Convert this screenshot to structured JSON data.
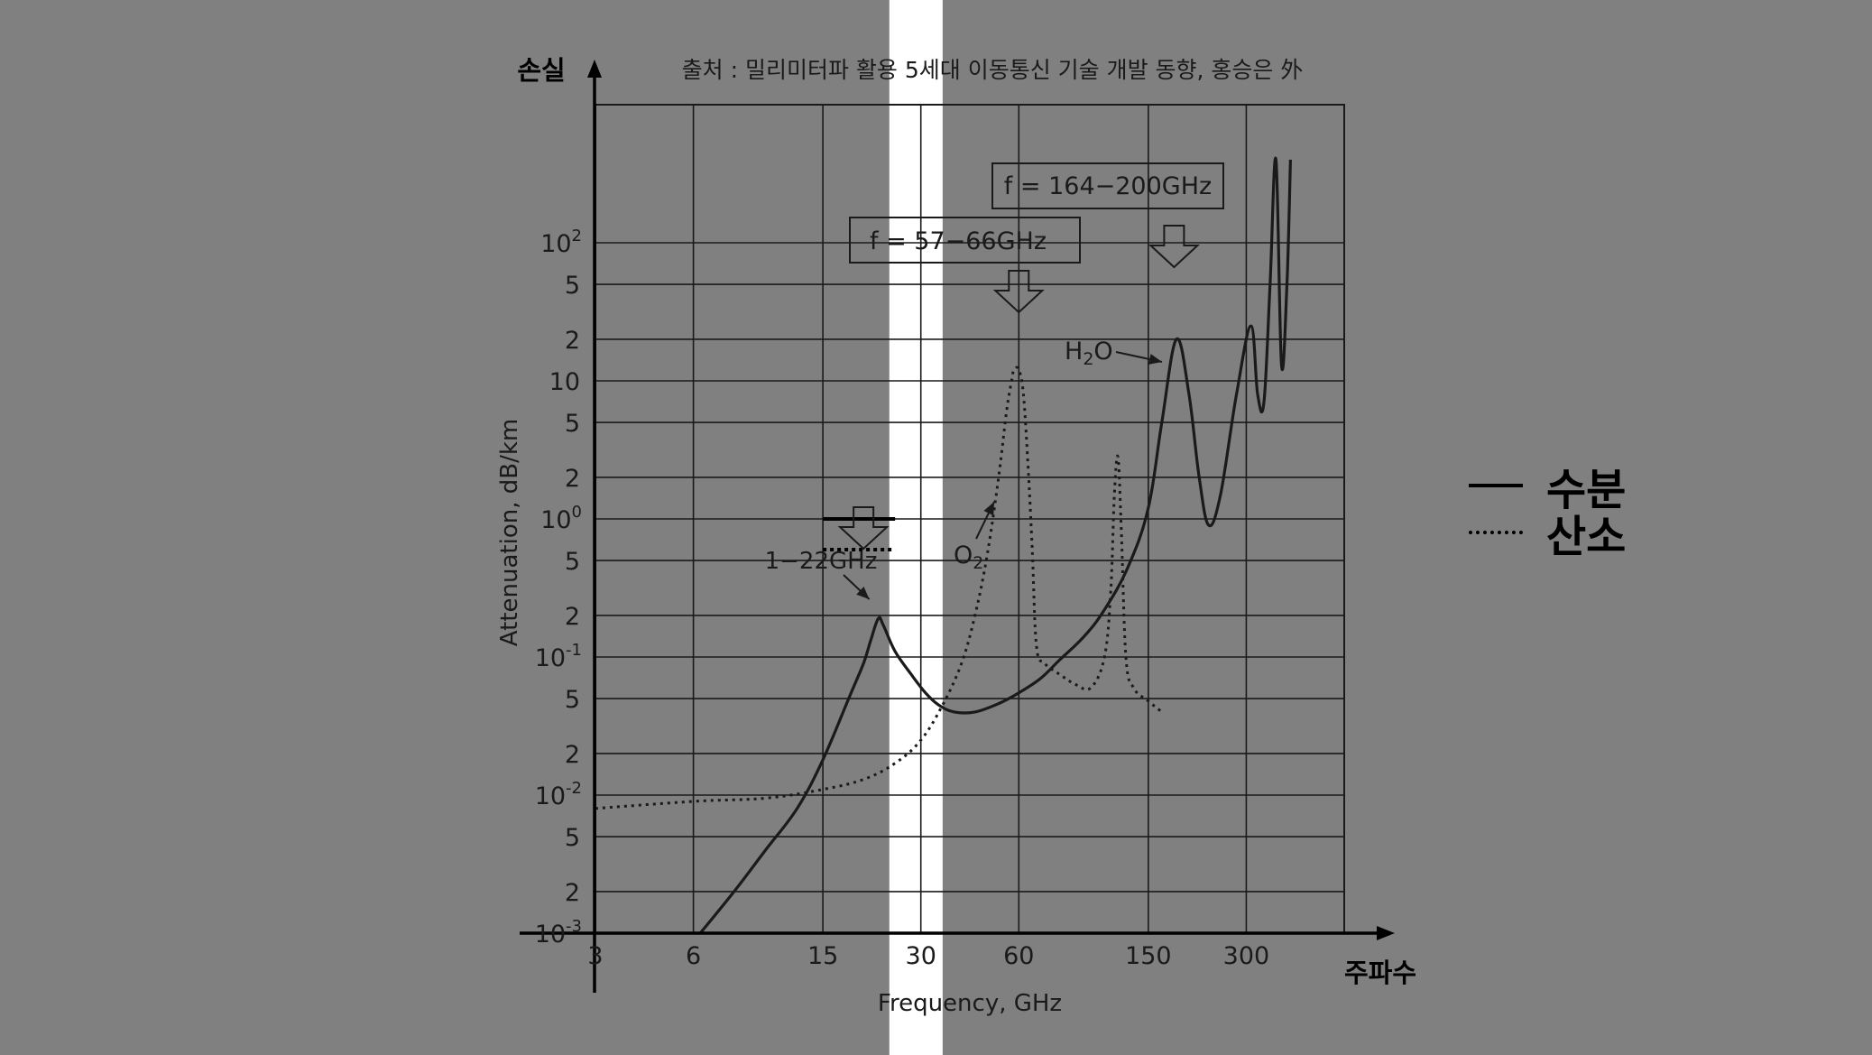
{
  "source_note": "출처 : 밀리미터파 활용 5세대 이동통신 기술 개발 동향, 홍승은 外",
  "y_axis_title": "손실",
  "x_axis_title": "주파수",
  "legend": {
    "items": [
      {
        "label": "수분",
        "style": "solid"
      },
      {
        "label": "산소",
        "style": "dotted"
      }
    ]
  },
  "colors": {
    "background": "#808080",
    "highlight_band": "#ffffff",
    "ink": "#1a1a1a"
  },
  "chart_data": {
    "type": "line",
    "xlabel": "Frequency, GHz",
    "ylabel": "Attenuation, dB/km",
    "x_scale": "log",
    "y_scale": "log",
    "xlim": [
      3,
      600
    ],
    "ylim": [
      0.001,
      1000
    ],
    "x_ticks": [
      "3",
      "6",
      "15",
      "30",
      "60",
      "150",
      "300"
    ],
    "x_tick_values": [
      3,
      6,
      15,
      30,
      60,
      150,
      300
    ],
    "y_tick_labels": [
      {
        "value": 0.001,
        "base": "10",
        "exp": "-3"
      },
      {
        "value": 0.002,
        "base": "2"
      },
      {
        "value": 0.005,
        "base": "5"
      },
      {
        "value": 0.01,
        "base": "10",
        "exp": "-2"
      },
      {
        "value": 0.02,
        "base": "2"
      },
      {
        "value": 0.05,
        "base": "5"
      },
      {
        "value": 0.1,
        "base": "10",
        "exp": "-1"
      },
      {
        "value": 0.2,
        "base": "2"
      },
      {
        "value": 0.5,
        "base": "5"
      },
      {
        "value": 1,
        "base": "10",
        "exp": "0"
      },
      {
        "value": 2,
        "base": "2"
      },
      {
        "value": 5,
        "base": "5"
      },
      {
        "value": 10,
        "base": "10"
      },
      {
        "value": 20,
        "base": "2"
      },
      {
        "value": 50,
        "base": "5"
      },
      {
        "value": 100,
        "base": "10",
        "exp": "2"
      }
    ],
    "highlight_x_range": [
      24,
      35
    ],
    "series": [
      {
        "name": "수분",
        "style": "solid",
        "x": [
          6.3,
          8,
          10,
          12.5,
          15,
          18,
          20,
          21,
          22.2,
          23,
          25,
          28,
          31,
          34,
          38,
          44,
          52,
          60,
          70,
          80,
          95,
          110,
          130,
          150,
          165,
          183,
          200,
          215,
          230,
          250,
          280,
          310,
          325,
          340,
          355,
          370,
          385,
          400,
          410
        ],
        "y": [
          0.001,
          0.002,
          0.004,
          0.008,
          0.018,
          0.05,
          0.09,
          0.13,
          0.19,
          0.17,
          0.11,
          0.075,
          0.055,
          0.045,
          0.04,
          0.04,
          0.046,
          0.055,
          0.07,
          0.095,
          0.14,
          0.22,
          0.45,
          1.2,
          5,
          20,
          8,
          2,
          0.9,
          1.5,
          8,
          25,
          8,
          7,
          50,
          400,
          13,
          50,
          400
        ]
      },
      {
        "name": "산소",
        "style": "dotted",
        "x": [
          3,
          6,
          10,
          15,
          20,
          25,
          30,
          35,
          40,
          44,
          48,
          52,
          55,
          57,
          58,
          60,
          62,
          64,
          66,
          68,
          72,
          80,
          90,
          100,
          110,
          115,
          118,
          121,
          124,
          128,
          135,
          150,
          165
        ],
        "y": [
          0.008,
          0.009,
          0.0095,
          0.011,
          0.013,
          0.017,
          0.025,
          0.045,
          0.09,
          0.2,
          0.55,
          2,
          6,
          10,
          12,
          12,
          8,
          2.5,
          0.6,
          0.12,
          0.09,
          0.075,
          0.063,
          0.06,
          0.1,
          0.3,
          1.5,
          2.8,
          0.8,
          0.1,
          0.06,
          0.048,
          0.04
        ]
      }
    ],
    "annotations": [
      {
        "text": "f = 164−200GHz",
        "type": "box",
        "arrow_x": 180
      },
      {
        "text": "f = 57−66GHz",
        "type": "box",
        "arrow_x": 60
      },
      {
        "text": "1−22GHz",
        "type": "label",
        "points_to_x": 22.2
      },
      {
        "text": "O",
        "sub": "2",
        "type": "label",
        "points_to_x": 42
      },
      {
        "text": "H",
        "sub": "2",
        "tail": "O",
        "type": "label",
        "points_to_x": 160
      },
      {
        "text": "",
        "type": "threshold",
        "x_range": [
          15,
          25
        ],
        "y": 1,
        "style": "solid"
      },
      {
        "text": "",
        "type": "threshold",
        "x_range": [
          15,
          25
        ],
        "y": 0.6,
        "style": "dotted"
      }
    ]
  }
}
